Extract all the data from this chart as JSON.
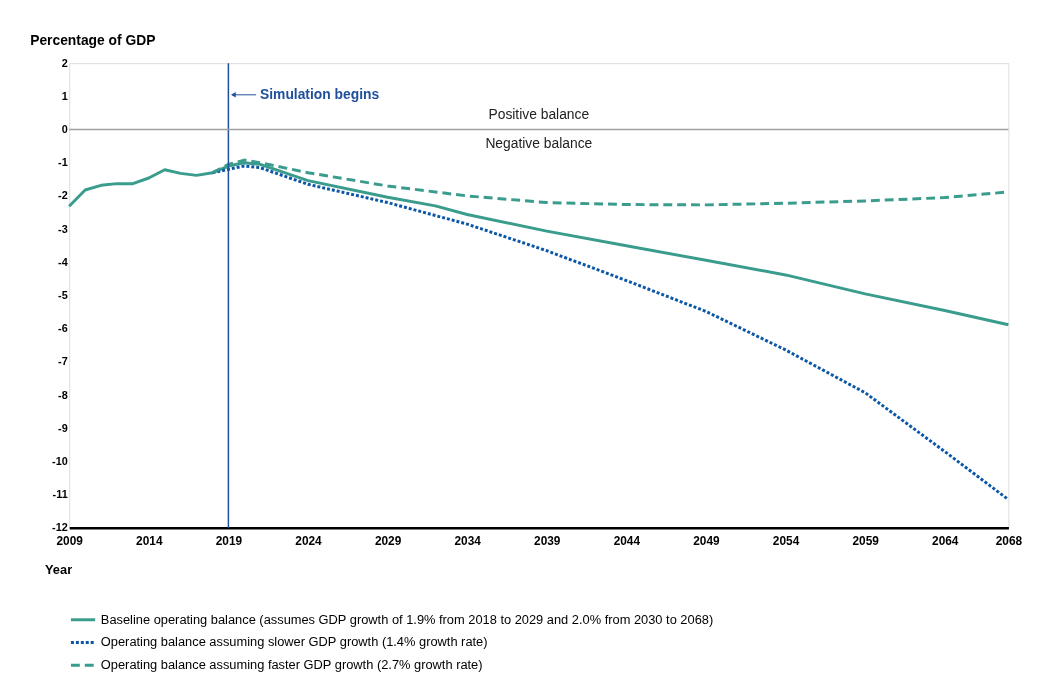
{
  "chart_data": {
    "type": "line",
    "ylabel": "Percentage of GDP",
    "xlabel": "Year",
    "xlim": [
      2009,
      2068
    ],
    "xticks": [
      2009,
      2014,
      2019,
      2024,
      2029,
      2034,
      2039,
      2044,
      2049,
      2054,
      2059,
      2064,
      2068
    ],
    "ylim": [
      -12,
      2
    ],
    "yticks": [
      -12,
      -11,
      -10,
      -9,
      -8,
      -7,
      -6,
      -5,
      -4,
      -3,
      -2,
      -1,
      0,
      1,
      2
    ],
    "grid": false,
    "legend": "bottom",
    "marker": "none",
    "series": [
      {
        "name": "Baseline operating balance (assumes GDP growth of 1.9% from 2018 to 2029 and 2.0% from 2030 to 2068)",
        "color": "#3a9c8c",
        "line_style": "solid",
        "x": [
          2009,
          2010,
          2011,
          2012,
          2013,
          2014,
          2015,
          2016,
          2017,
          2018,
          2019,
          2020,
          2021,
          2024,
          2029,
          2032,
          2034,
          2039,
          2044,
          2049,
          2054,
          2059,
          2064,
          2068
        ],
        "values": [
          -2.31,
          -1.82,
          -1.68,
          -1.63,
          -1.63,
          -1.46,
          -1.21,
          -1.32,
          -1.38,
          -1.3,
          -1.1,
          -1.0,
          -1.05,
          -1.54,
          -2.04,
          -2.3,
          -2.56,
          -3.06,
          -3.5,
          -3.94,
          -4.38,
          -4.95,
          -5.45,
          -5.88
        ]
      },
      {
        "name": "Operating balance assuming slower GDP growth (1.4% growth rate)",
        "color": "#0a57a8",
        "line_style": "dotted",
        "x": [
          2018,
          2019,
          2020,
          2021,
          2024,
          2029,
          2034,
          2039,
          2044,
          2049,
          2054,
          2059,
          2064,
          2068
        ],
        "values": [
          -1.3,
          -1.2,
          -1.1,
          -1.15,
          -1.65,
          -2.2,
          -2.85,
          -3.65,
          -4.55,
          -5.48,
          -6.64,
          -7.93,
          -9.7,
          -11.15
        ]
      },
      {
        "name": "Operating balance assuming faster GDP growth (2.7% growth rate)",
        "color": "#3a9c8c",
        "line_style": "dashed",
        "x": [
          2018,
          2019,
          2020,
          2021,
          2024,
          2029,
          2034,
          2039,
          2044,
          2049,
          2054,
          2059,
          2064,
          2068
        ],
        "values": [
          -1.3,
          -1.05,
          -0.92,
          -1.0,
          -1.3,
          -1.7,
          -2.0,
          -2.2,
          -2.26,
          -2.27,
          -2.22,
          -2.15,
          -2.05,
          -1.88
        ]
      }
    ],
    "ref_lines": [
      {
        "axis": "x",
        "value": 2019,
        "label": "Simulation begins",
        "color": "#1f4e9a"
      },
      {
        "axis": "y",
        "value": 0,
        "color": "#a0a0a0"
      }
    ],
    "annotations": [
      "Positive balance",
      "Negative balance"
    ]
  }
}
